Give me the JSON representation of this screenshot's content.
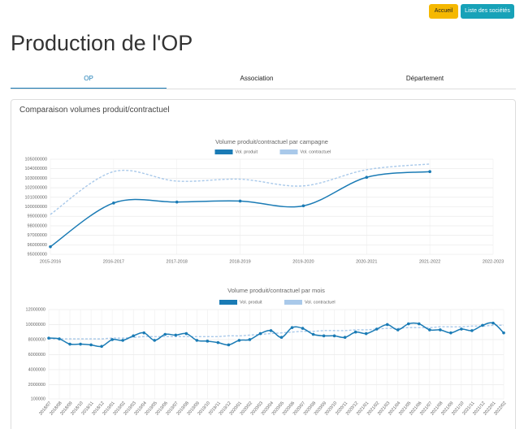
{
  "header": {
    "buttons": [
      "Accueil",
      "Liste des sociétés"
    ],
    "title": "Production de l'OP"
  },
  "tabs": [
    "OP",
    "Association",
    "Département"
  ],
  "card": {
    "title": "Comparaison volumes produit/contractuel"
  },
  "chart_data": [
    {
      "type": "line",
      "title": "Volume produit/contractuel par campagne",
      "categories": [
        "2015-2016",
        "2016-2017",
        "2017-2018",
        "2018-2019",
        "2019-2020",
        "2020-2021",
        "2021-2022",
        "2022-2023"
      ],
      "series": [
        {
          "name": "Vol. produit",
          "color": "#1a7bb5",
          "line_style": "solid",
          "markers": true,
          "values": [
            95800000,
            100400000,
            100500000,
            100600000,
            100100000,
            103100000,
            103700000,
            null
          ]
        },
        {
          "name": "Vol. contractuel",
          "color": "#a9c9ea",
          "line_style": "dashed",
          "markers": false,
          "values": [
            99200000,
            103700000,
            102700000,
            102900000,
            102200000,
            103900000,
            104500000,
            null
          ]
        }
      ],
      "ylim": [
        95000000,
        105000000
      ],
      "yticks": [
        95000000,
        96000000,
        97000000,
        98000000,
        99000000,
        100000000,
        101000000,
        102000000,
        103000000,
        104000000,
        105000000
      ],
      "grid": true
    },
    {
      "type": "line",
      "title": "Volume produit/contractuel par mois",
      "categories": [
        "2018/07",
        "2018/08",
        "2018/09",
        "2018/10",
        "2018/11",
        "2018/12",
        "2019/01",
        "2019/02",
        "2019/03",
        "2019/04",
        "2019/05",
        "2019/06",
        "2019/07",
        "2019/08",
        "2019/09",
        "2019/10",
        "2019/11",
        "2019/12",
        "2020/01",
        "2020/02",
        "2020/03",
        "2020/04",
        "2020/05",
        "2020/06",
        "2020/07",
        "2020/08",
        "2020/09",
        "2020/10",
        "2020/11",
        "2020/12",
        "2021/01",
        "2021/02",
        "2021/03",
        "2021/04",
        "2021/05",
        "2021/06",
        "2021/07",
        "2021/08",
        "2021/09",
        "2021/10",
        "2021/11",
        "2021/12",
        "2022/01",
        "2022/02"
      ],
      "series": [
        {
          "name": "Vol. produit",
          "color": "#1a7bb5",
          "line_style": "solid",
          "markers": true,
          "values": [
            8200000,
            8100000,
            7400000,
            7400000,
            7300000,
            7100000,
            8000000,
            7900000,
            8500000,
            8900000,
            7900000,
            8700000,
            8600000,
            8800000,
            7900000,
            7800000,
            7600000,
            7300000,
            7900000,
            8000000,
            8800000,
            9200000,
            8300000,
            9600000,
            9500000,
            8700000,
            8500000,
            8500000,
            8300000,
            9000000,
            8800000,
            9400000,
            10000000,
            9300000,
            10100000,
            10100000,
            9300000,
            9300000,
            8900000,
            9400000,
            9200000,
            9900000,
            10200000,
            8900000
          ]
        },
        {
          "name": "Vol. contractuel",
          "color": "#a9c9ea",
          "line_style": "dashed",
          "markers": false,
          "values": [
            8100000,
            8100000,
            8100000,
            8100000,
            8100000,
            8100000,
            8200000,
            8200000,
            8300000,
            8400000,
            8400000,
            8400000,
            8400000,
            8400000,
            8400000,
            8400000,
            8400000,
            8500000,
            8500000,
            8600000,
            8700000,
            8800000,
            8900000,
            9000000,
            9100000,
            9100000,
            9200000,
            9200000,
            9200000,
            9300000,
            9300000,
            9400000,
            9500000,
            9500000,
            9600000,
            9600000,
            9600000,
            9700000,
            9700000,
            9700000,
            9800000,
            9800000,
            9900000,
            9900000
          ]
        }
      ],
      "ylim": [
        100000,
        12000000
      ],
      "yticks": [
        100000,
        2000000,
        4000000,
        6000000,
        8000000,
        10000000,
        12000000
      ],
      "grid": true
    }
  ]
}
